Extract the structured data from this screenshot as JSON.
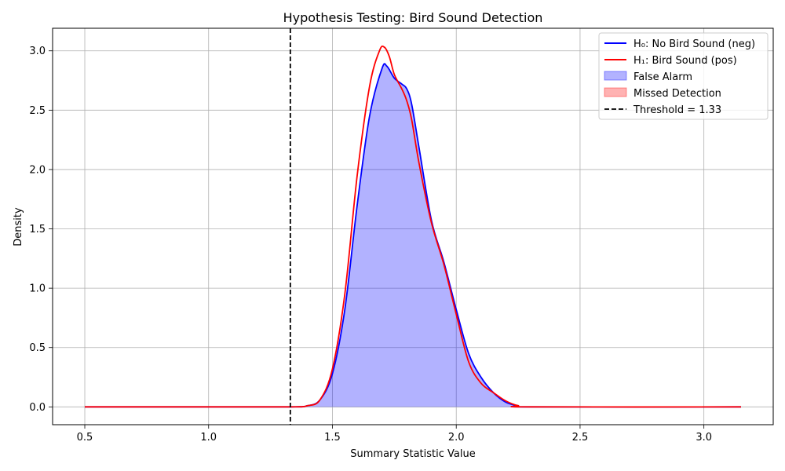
{
  "chart_data": {
    "type": "area",
    "title": "Hypothesis Testing: Bird Sound Detection",
    "xlabel": "Summary Statistic Value",
    "ylabel": "Density",
    "xlim": [
      0.37,
      3.28
    ],
    "ylim": [
      -0.15,
      3.19
    ],
    "xticks": [
      0.5,
      1.0,
      1.5,
      2.0,
      2.5,
      3.0
    ],
    "xtick_labels": [
      "0.5",
      "1.0",
      "1.5",
      "2.0",
      "2.5",
      "3.0"
    ],
    "yticks": [
      0.0,
      0.5,
      1.0,
      1.5,
      2.0,
      2.5,
      3.0
    ],
    "ytick_labels": [
      "0.0",
      "0.5",
      "1.0",
      "1.5",
      "2.0",
      "2.5",
      "3.0"
    ],
    "grid": true,
    "legend_position": "top-right",
    "threshold": {
      "value": 1.33,
      "label": "Threshold = 1.33",
      "color": "#000000"
    },
    "series": [
      {
        "name": "H₀: No Bird Sound (neg)",
        "color": "#0000ff",
        "x": [
          0.5,
          1.0,
          1.33,
          1.4,
          1.45,
          1.5,
          1.55,
          1.6,
          1.65,
          1.7,
          1.72,
          1.75,
          1.78,
          1.8,
          1.82,
          1.85,
          1.9,
          1.95,
          2.0,
          2.05,
          2.1,
          2.15,
          2.2,
          2.25,
          2.3,
          3.15
        ],
        "y": [
          0.0,
          0.0,
          0.0,
          0.01,
          0.06,
          0.28,
          0.82,
          1.7,
          2.45,
          2.85,
          2.87,
          2.77,
          2.72,
          2.68,
          2.55,
          2.18,
          1.57,
          1.22,
          0.82,
          0.45,
          0.25,
          0.12,
          0.04,
          0.01,
          0.0,
          0.0
        ]
      },
      {
        "name": "H₁: Bird Sound (pos)",
        "color": "#ff0000",
        "x": [
          0.5,
          1.0,
          1.33,
          1.4,
          1.45,
          1.5,
          1.55,
          1.6,
          1.65,
          1.69,
          1.71,
          1.73,
          1.75,
          1.78,
          1.8,
          1.82,
          1.85,
          1.9,
          1.95,
          2.0,
          2.05,
          2.1,
          2.15,
          2.2,
          2.25,
          2.3,
          3.15
        ],
        "y": [
          0.0,
          0.0,
          0.0,
          0.01,
          0.06,
          0.32,
          0.95,
          1.95,
          2.7,
          3.0,
          3.03,
          2.95,
          2.8,
          2.68,
          2.58,
          2.42,
          2.05,
          1.55,
          1.2,
          0.78,
          0.38,
          0.2,
          0.12,
          0.05,
          0.01,
          0.0,
          0.0
        ]
      }
    ],
    "fills": [
      {
        "name": "False Alarm",
        "color": "#0000ff",
        "opacity": 0.3,
        "of_series": 0
      },
      {
        "name": "Missed Detection",
        "color": "#ff0000",
        "opacity": 0.3,
        "of_series": 1
      }
    ]
  }
}
